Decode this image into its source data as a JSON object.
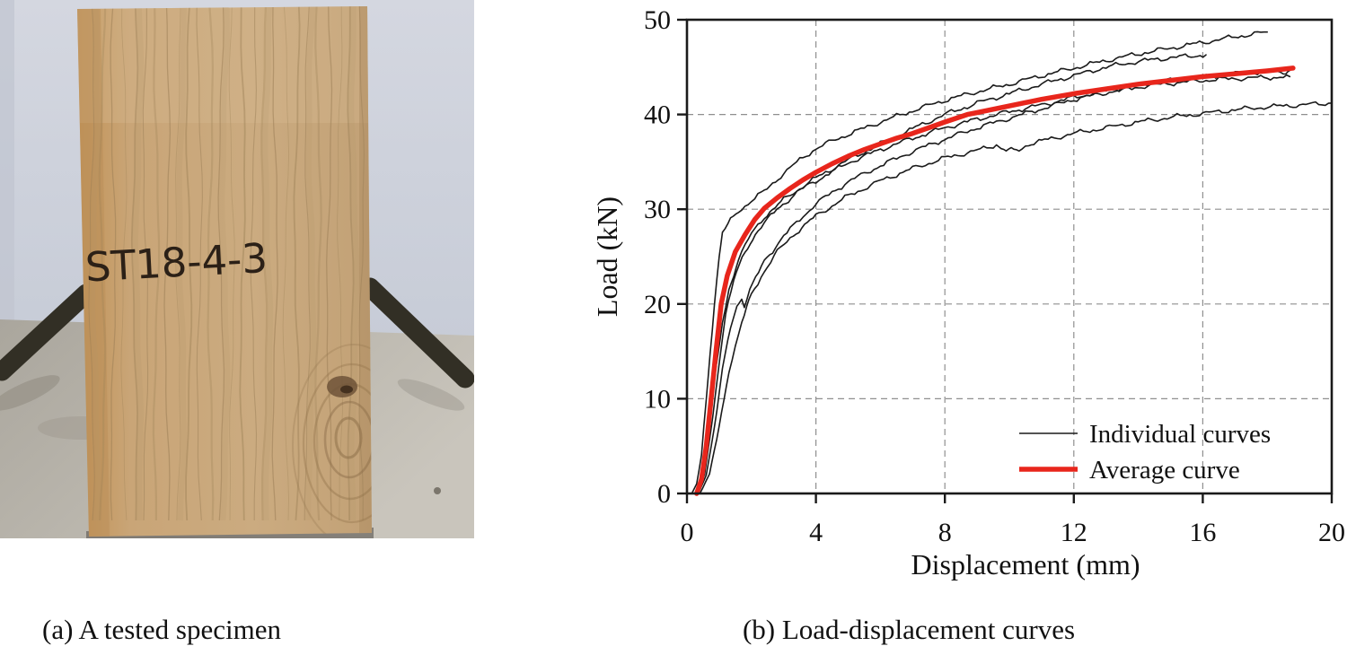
{
  "figure": {
    "panel_a": {
      "caption": "(a) A tested specimen",
      "specimen_label": "ST18-4-3"
    },
    "panel_b": {
      "caption": "(b) Load-displacement curves"
    }
  },
  "chart_data": {
    "type": "line",
    "title": "",
    "xlabel": "Displacement (mm)",
    "ylabel": "Load (kN)",
    "xlim": [
      0,
      20
    ],
    "ylim": [
      0,
      50
    ],
    "xticks": [
      0,
      4,
      8,
      12,
      16,
      20
    ],
    "yticks": [
      0,
      10,
      20,
      30,
      40,
      50
    ],
    "grid": "dashed",
    "legend": {
      "position": "lower-right",
      "entries": [
        {
          "label": "Individual curves",
          "color": "#1a1a1a",
          "width": 1.6
        },
        {
          "label": "Average curve",
          "color": "#e8261c",
          "width": 5
        }
      ]
    },
    "series": [
      {
        "name": "individual-1",
        "role": "individual",
        "points": [
          [
            0.15,
            0
          ],
          [
            0.3,
            1
          ],
          [
            0.45,
            4
          ],
          [
            0.6,
            10
          ],
          [
            0.72,
            15
          ],
          [
            0.85,
            20
          ],
          [
            1.0,
            25
          ],
          [
            1.1,
            27.5
          ],
          [
            1.35,
            28.8
          ],
          [
            1.6,
            29.8
          ],
          [
            2.0,
            30.9
          ],
          [
            2.4,
            31.9
          ],
          [
            3.0,
            33.8
          ],
          [
            3.5,
            35.2
          ],
          [
            4,
            36.4
          ],
          [
            4.5,
            37.2
          ],
          [
            5,
            37.9
          ],
          [
            6,
            39.2
          ],
          [
            7,
            40.4
          ],
          [
            8,
            41.5
          ],
          [
            9,
            42.4
          ],
          [
            10,
            43.2
          ],
          [
            11,
            44.1
          ],
          [
            12,
            44.9
          ],
          [
            13,
            45.7
          ],
          [
            14,
            46.4
          ],
          [
            15,
            47.0
          ],
          [
            16,
            47.6
          ],
          [
            17,
            48.2
          ],
          [
            18,
            48.7
          ]
        ]
      },
      {
        "name": "individual-2",
        "role": "individual",
        "points": [
          [
            0.25,
            0
          ],
          [
            0.5,
            2
          ],
          [
            0.7,
            7
          ],
          [
            0.9,
            13
          ],
          [
            1.1,
            18
          ],
          [
            1.3,
            21.5
          ],
          [
            1.6,
            24.8
          ],
          [
            2.0,
            27.4
          ],
          [
            2.4,
            29.2
          ],
          [
            3,
            31
          ],
          [
            3.5,
            32.2
          ],
          [
            4,
            33.3
          ],
          [
            5,
            35.2
          ],
          [
            6,
            36.9
          ],
          [
            7,
            38.5
          ],
          [
            8,
            40.0
          ],
          [
            9,
            41.2
          ],
          [
            10,
            42.2
          ],
          [
            11,
            43.2
          ],
          [
            12,
            44.1
          ],
          [
            13,
            45.0
          ],
          [
            14,
            45.6
          ],
          [
            15,
            46.0
          ],
          [
            16.1,
            46.3
          ]
        ]
      },
      {
        "name": "individual-3",
        "role": "individual",
        "points": [
          [
            0.3,
            0
          ],
          [
            0.55,
            2
          ],
          [
            0.8,
            8
          ],
          [
            1.0,
            14
          ],
          [
            1.2,
            19
          ],
          [
            1.45,
            22.5
          ],
          [
            1.8,
            25.5
          ],
          [
            2.2,
            27.8
          ],
          [
            2.8,
            30
          ],
          [
            3.5,
            32
          ],
          [
            4,
            33.0
          ],
          [
            5,
            34.9
          ],
          [
            6,
            36.3
          ],
          [
            7,
            37.5
          ],
          [
            8,
            38.6
          ],
          [
            9,
            39.5
          ],
          [
            10,
            40.3
          ],
          [
            11,
            41.0
          ],
          [
            12,
            41.8
          ],
          [
            13,
            42.5
          ],
          [
            14,
            43.1
          ],
          [
            15,
            43.6
          ],
          [
            16,
            44.0
          ],
          [
            17,
            44.3
          ],
          [
            18,
            44.5
          ],
          [
            18.5,
            44.5
          ],
          [
            18.8,
            44.8
          ]
        ]
      },
      {
        "name": "individual-4",
        "role": "individual",
        "points": [
          [
            0.35,
            0
          ],
          [
            0.6,
            2
          ],
          [
            0.85,
            7
          ],
          [
            1.1,
            13
          ],
          [
            1.35,
            17.5
          ],
          [
            1.55,
            19.8
          ],
          [
            1.7,
            20.6
          ],
          [
            1.78,
            19.9
          ],
          [
            1.95,
            21.5
          ],
          [
            2.4,
            24.5
          ],
          [
            3,
            27.2
          ],
          [
            4,
            30.6
          ],
          [
            5,
            32.9
          ],
          [
            6,
            34.6
          ],
          [
            7,
            36.1
          ],
          [
            8,
            37.4
          ],
          [
            9,
            38.6
          ],
          [
            10,
            39.6
          ],
          [
            11,
            40.6
          ],
          [
            12,
            41.6
          ],
          [
            13,
            42.3
          ],
          [
            14,
            42.9
          ],
          [
            15,
            43.3
          ],
          [
            16,
            43.6
          ],
          [
            17,
            43.8
          ],
          [
            18,
            43.9
          ],
          [
            18.7,
            44.0
          ]
        ]
      },
      {
        "name": "individual-5",
        "role": "individual",
        "points": [
          [
            0.4,
            0
          ],
          [
            0.7,
            2
          ],
          [
            1.0,
            7
          ],
          [
            1.3,
            13
          ],
          [
            1.7,
            18
          ],
          [
            2.0,
            21
          ],
          [
            2.4,
            23.5
          ],
          [
            2.8,
            25.5
          ],
          [
            3.3,
            27.3
          ],
          [
            4,
            29.3
          ],
          [
            5,
            31.4
          ],
          [
            6,
            33.0
          ],
          [
            7,
            34.3
          ],
          [
            8,
            35.4
          ],
          [
            9,
            36.2
          ],
          [
            9.6,
            36.8
          ],
          [
            9.9,
            36.2
          ],
          [
            10.3,
            36.2
          ],
          [
            10.6,
            36.9
          ],
          [
            11,
            37.2
          ],
          [
            12,
            38.0
          ],
          [
            13,
            38.6
          ],
          [
            14,
            39.2
          ],
          [
            15,
            39.7
          ],
          [
            16,
            40.1
          ],
          [
            17,
            40.5
          ],
          [
            18,
            40.8
          ],
          [
            19,
            41.0
          ],
          [
            20,
            41.2
          ]
        ]
      },
      {
        "name": "average",
        "role": "average",
        "points": [
          [
            0.3,
            0
          ],
          [
            0.45,
            1.5
          ],
          [
            0.6,
            5
          ],
          [
            0.75,
            10
          ],
          [
            0.9,
            15
          ],
          [
            1.06,
            20
          ],
          [
            1.25,
            23
          ],
          [
            1.5,
            25.5
          ],
          [
            1.8,
            27.3
          ],
          [
            2.1,
            28.9
          ],
          [
            2.4,
            30.1
          ],
          [
            2.8,
            31.2
          ],
          [
            3.2,
            32.2
          ],
          [
            3.6,
            33.1
          ],
          [
            4,
            33.9
          ],
          [
            4.5,
            34.8
          ],
          [
            5,
            35.6
          ],
          [
            5.5,
            36.3
          ],
          [
            6,
            36.9
          ],
          [
            6.5,
            37.5
          ],
          [
            7,
            38.0
          ],
          [
            7.5,
            38.6
          ],
          [
            8,
            39.2
          ],
          [
            8.7,
            40.0
          ],
          [
            9,
            40.2
          ],
          [
            10,
            40.9
          ],
          [
            11,
            41.6
          ],
          [
            12,
            42.2
          ],
          [
            13,
            42.7
          ],
          [
            14,
            43.2
          ],
          [
            15,
            43.6
          ],
          [
            16,
            44.0
          ],
          [
            17,
            44.3
          ],
          [
            18,
            44.6
          ],
          [
            18.8,
            44.9
          ]
        ]
      }
    ]
  },
  "colors": {
    "average_red": "#e8261c",
    "curve_black": "#1a1a1a",
    "grid_gray": "#8f8f8f",
    "wall": "#cdd2dc",
    "table": "#bcb8af",
    "wood": "#c7a67c",
    "rod": "#322f25",
    "marker_text": "#2b2017"
  }
}
